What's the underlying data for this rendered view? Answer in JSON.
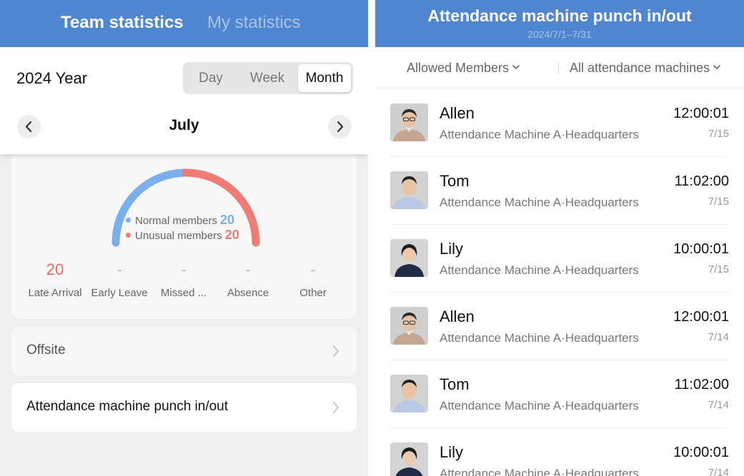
{
  "left": {
    "tabs": {
      "team": "Team statistics",
      "my": "My statistics"
    },
    "period": {
      "year": "2024 Year",
      "segments": {
        "day": "Day",
        "week": "Week",
        "month": "Month"
      },
      "selected": "Month",
      "month": "July"
    },
    "gauge": {
      "normal_label": "Normal members",
      "normal_value": "20",
      "unusual_label": "Unusual members",
      "unusual_value": "20",
      "normal_color": "#7aafee",
      "unusual_color": "#ee7b74"
    },
    "metrics": [
      {
        "value": "20",
        "label": "Late Arrival"
      },
      {
        "value": "-",
        "label": "Early Leave"
      },
      {
        "value": "-",
        "label": "Missed ..."
      },
      {
        "value": "-",
        "label": "Absence"
      },
      {
        "value": "-",
        "label": "Other"
      }
    ],
    "rows": {
      "offsite": "Offsite",
      "machine": "Attendance machine punch in/out"
    }
  },
  "right": {
    "title": "Attendance machine punch in/out",
    "date_range": "2024/7/1–7/31",
    "filters": {
      "members": "Allowed Members",
      "machines": "All attendance machines"
    },
    "records": [
      {
        "name": "Allen",
        "location": "Attendance Machine A·Headquarters",
        "time": "12:00:01",
        "date": "7/15",
        "avatar": "male-glasses"
      },
      {
        "name": "Tom",
        "location": "Attendance Machine A·Headquarters",
        "time": "11:02:00",
        "date": "7/15",
        "avatar": "male"
      },
      {
        "name": "Lily",
        "location": "Attendance Machine A·Headquarters",
        "time": "10:00:01",
        "date": "7/15",
        "avatar": "female"
      },
      {
        "name": "Allen",
        "location": "Attendance Machine A·Headquarters",
        "time": "12:00:01",
        "date": "7/14",
        "avatar": "male-glasses"
      },
      {
        "name": "Tom",
        "location": "Attendance Machine A·Headquarters",
        "time": "11:02:00",
        "date": "7/14",
        "avatar": "male"
      },
      {
        "name": "Lily",
        "location": "Attendance Machine A·Headquarters",
        "time": "10:00:01",
        "date": "7/14",
        "avatar": "female"
      }
    ]
  },
  "colors": {
    "header_blue": "#4f86cf",
    "accent_red": "#e86a63"
  }
}
